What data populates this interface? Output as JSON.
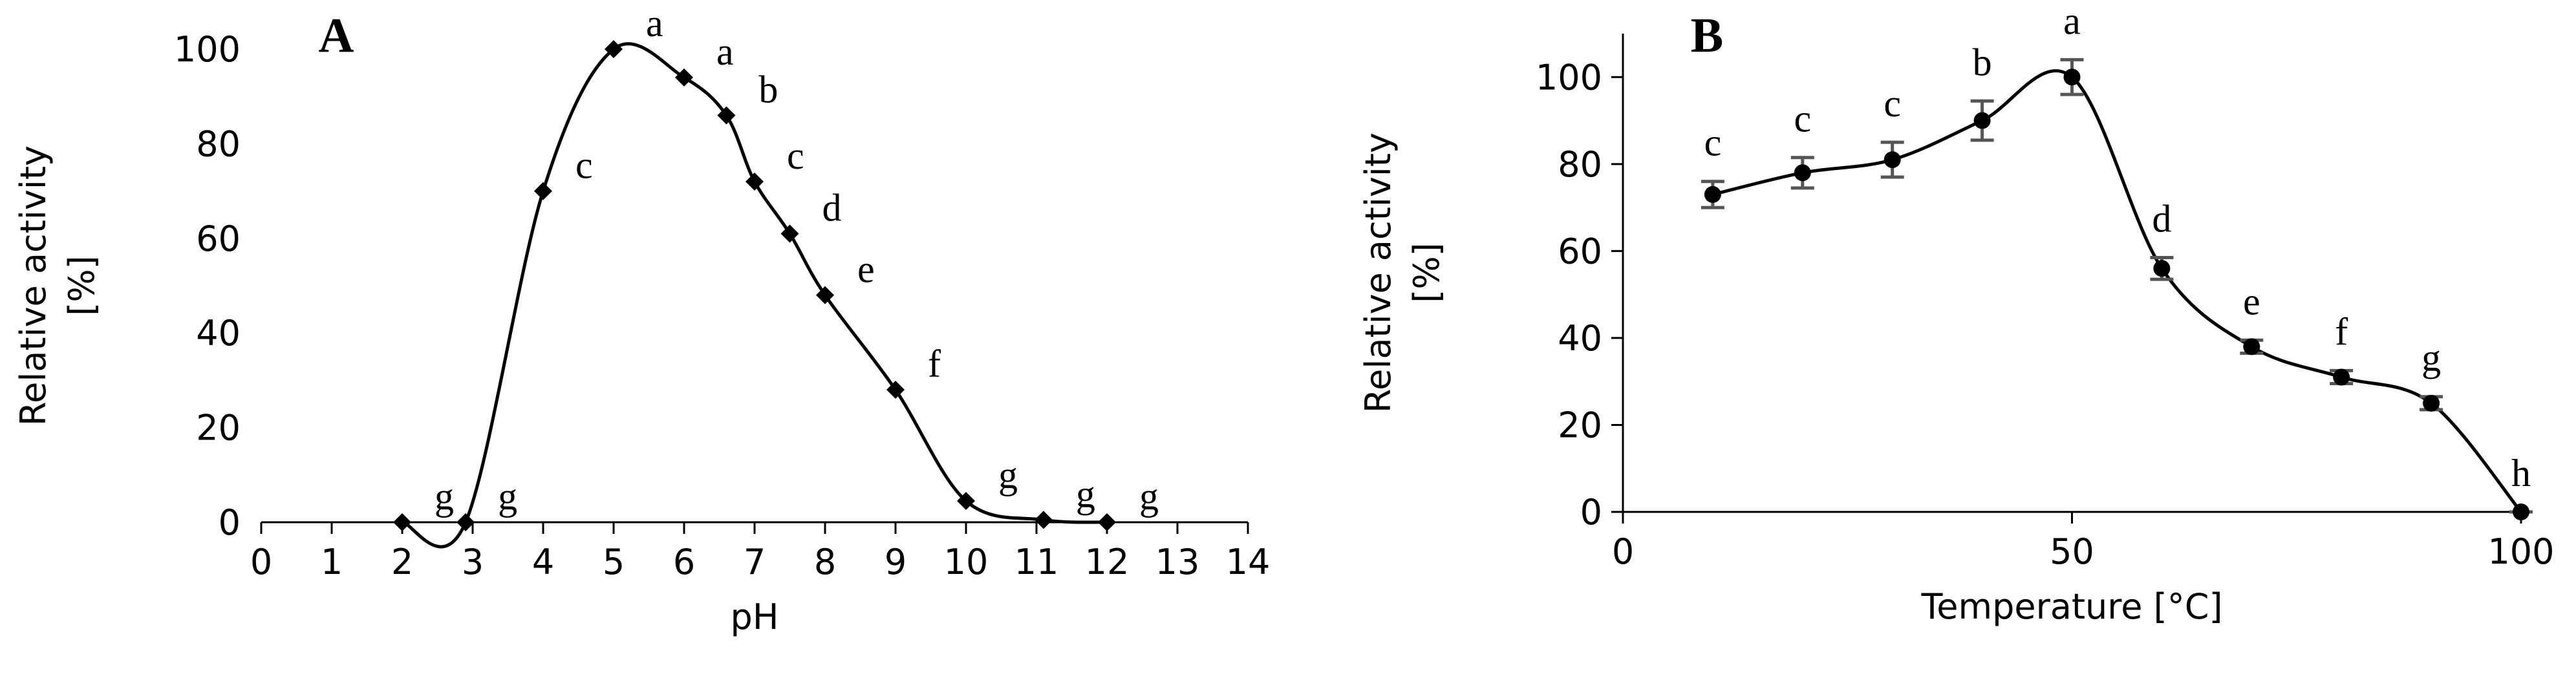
{
  "chart_data": [
    {
      "type": "line",
      "title": "A",
      "xlabel": "pH",
      "ylabel": [
        "Relative activity",
        "[%]"
      ],
      "x": [
        2,
        2.9,
        4,
        5,
        6,
        6.6,
        7,
        7.5,
        8,
        9,
        10,
        11.1,
        12
      ],
      "series": [
        {
          "color": "#000000",
          "values": [
            0,
            0,
            70,
            100,
            94,
            86,
            72,
            61,
            48,
            28,
            4.5,
            0.5,
            0
          ]
        }
      ],
      "annotations": [
        "g",
        "g",
        "c",
        "a",
        "a",
        "b",
        "c",
        "d",
        "e",
        "f",
        "g",
        "g",
        "g"
      ],
      "xlim": [
        0,
        14
      ],
      "xticks": [
        0,
        1,
        2,
        3,
        4,
        5,
        6,
        7,
        8,
        9,
        10,
        11,
        12,
        13,
        14
      ],
      "ylim": [
        0,
        100
      ],
      "yticks": [
        0,
        20,
        40,
        60,
        80,
        100
      ],
      "grid": false
    },
    {
      "type": "line",
      "title": "B",
      "xlabel": "Temperature [°C]",
      "ylabel": [
        "Relative activity",
        "[%]"
      ],
      "x": [
        10,
        20,
        30,
        40,
        50,
        60,
        70,
        80,
        90,
        100
      ],
      "series": [
        {
          "color": "#000000",
          "values": [
            73,
            78,
            81,
            90,
            100,
            56,
            38,
            31,
            25,
            0
          ],
          "errors": [
            3,
            3.5,
            4,
            4.5,
            4,
            2.5,
            1.5,
            1.5,
            1.5,
            0
          ]
        }
      ],
      "annotations": [
        "c",
        "c",
        "c",
        "b",
        "a",
        "d",
        "e",
        "f",
        "g",
        "h"
      ],
      "xlim": [
        0,
        100
      ],
      "xticks": [
        0,
        50,
        100
      ],
      "ylim": [
        0,
        110
      ],
      "yticks": [
        0,
        20,
        40,
        60,
        80,
        100
      ],
      "grid": false
    }
  ]
}
